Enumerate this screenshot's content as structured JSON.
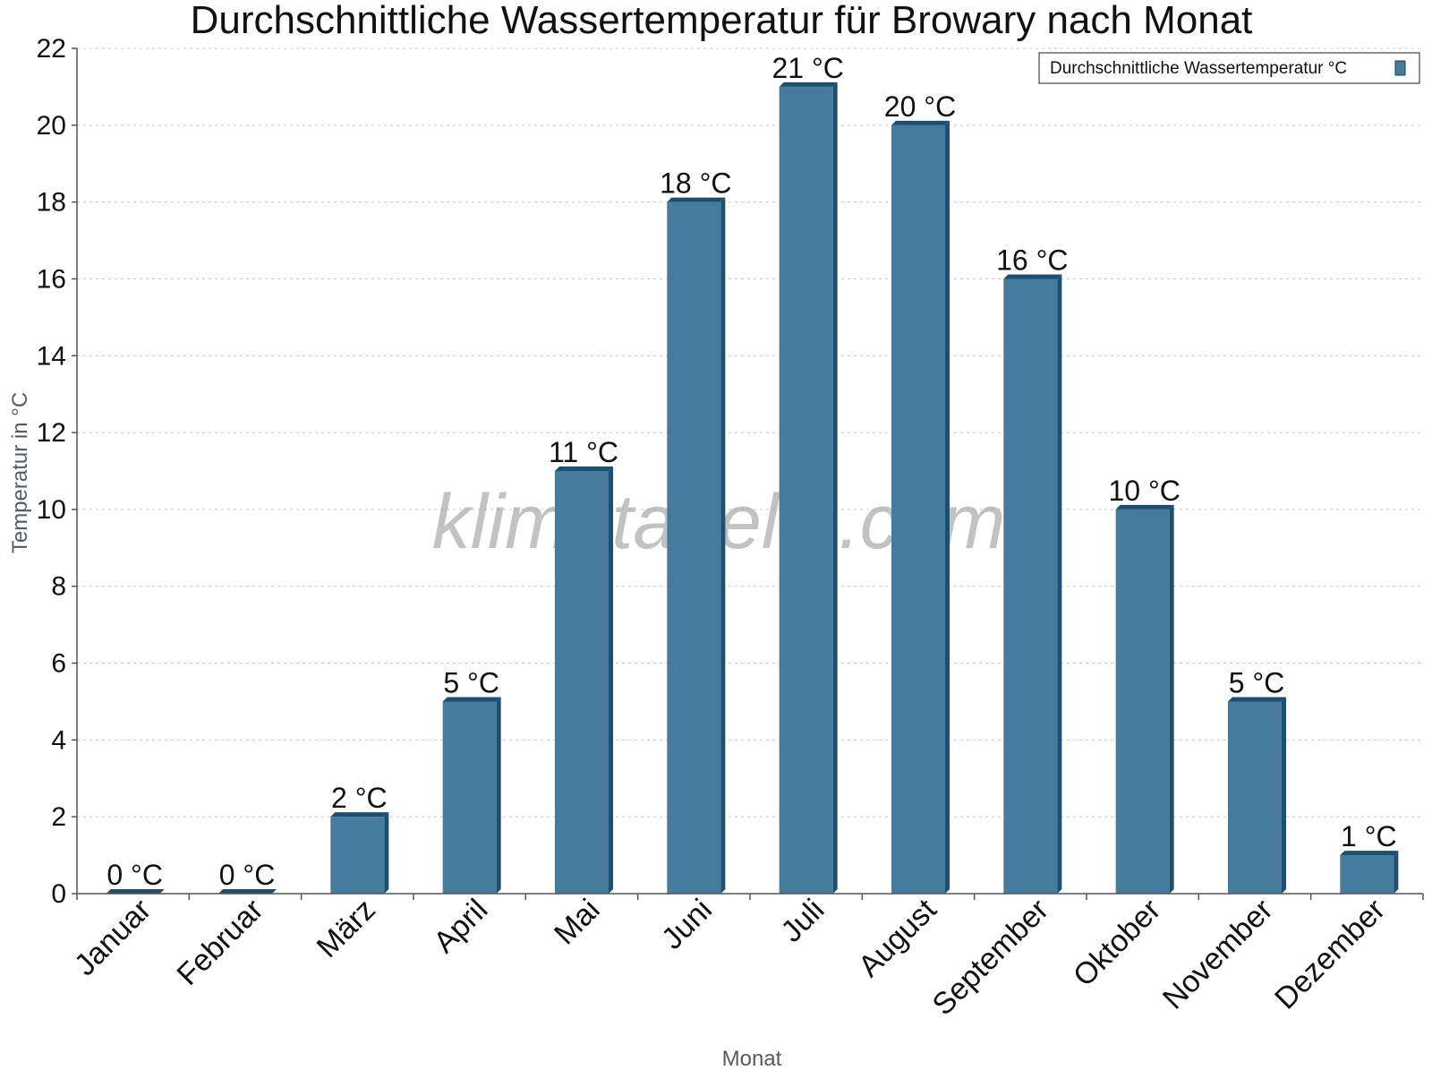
{
  "chart_data": {
    "type": "bar",
    "title": "Durchschnittliche Wassertemperatur für Browary nach Monat",
    "xlabel": "Monat",
    "ylabel": "Temperatur in °C",
    "categories": [
      "Januar",
      "Februar",
      "März",
      "April",
      "Mai",
      "Juni",
      "Juli",
      "August",
      "September",
      "Oktober",
      "November",
      "Dezember"
    ],
    "series": [
      {
        "name": "Durchschnittliche Wassertemperatur °C",
        "values": [
          0,
          0,
          2,
          5,
          11,
          18,
          21,
          20,
          16,
          10,
          5,
          1
        ],
        "labels": [
          "0 °C",
          "0 °C",
          "2 °C",
          "5 °C",
          "11 °C",
          "18 °C",
          "21 °C",
          "20 °C",
          "16 °C",
          "10 °C",
          "5 °C",
          "1 °C"
        ],
        "color": "#457b9d"
      }
    ],
    "ylim": [
      0,
      22
    ],
    "yticks": [
      0,
      2,
      4,
      6,
      8,
      10,
      12,
      14,
      16,
      18,
      20,
      22
    ],
    "grid": true,
    "legend": "top-right",
    "watermark": "klimatabelle.com",
    "colors": {
      "bar": "#457b9d",
      "bar_dark": "#1f4e6e"
    }
  }
}
